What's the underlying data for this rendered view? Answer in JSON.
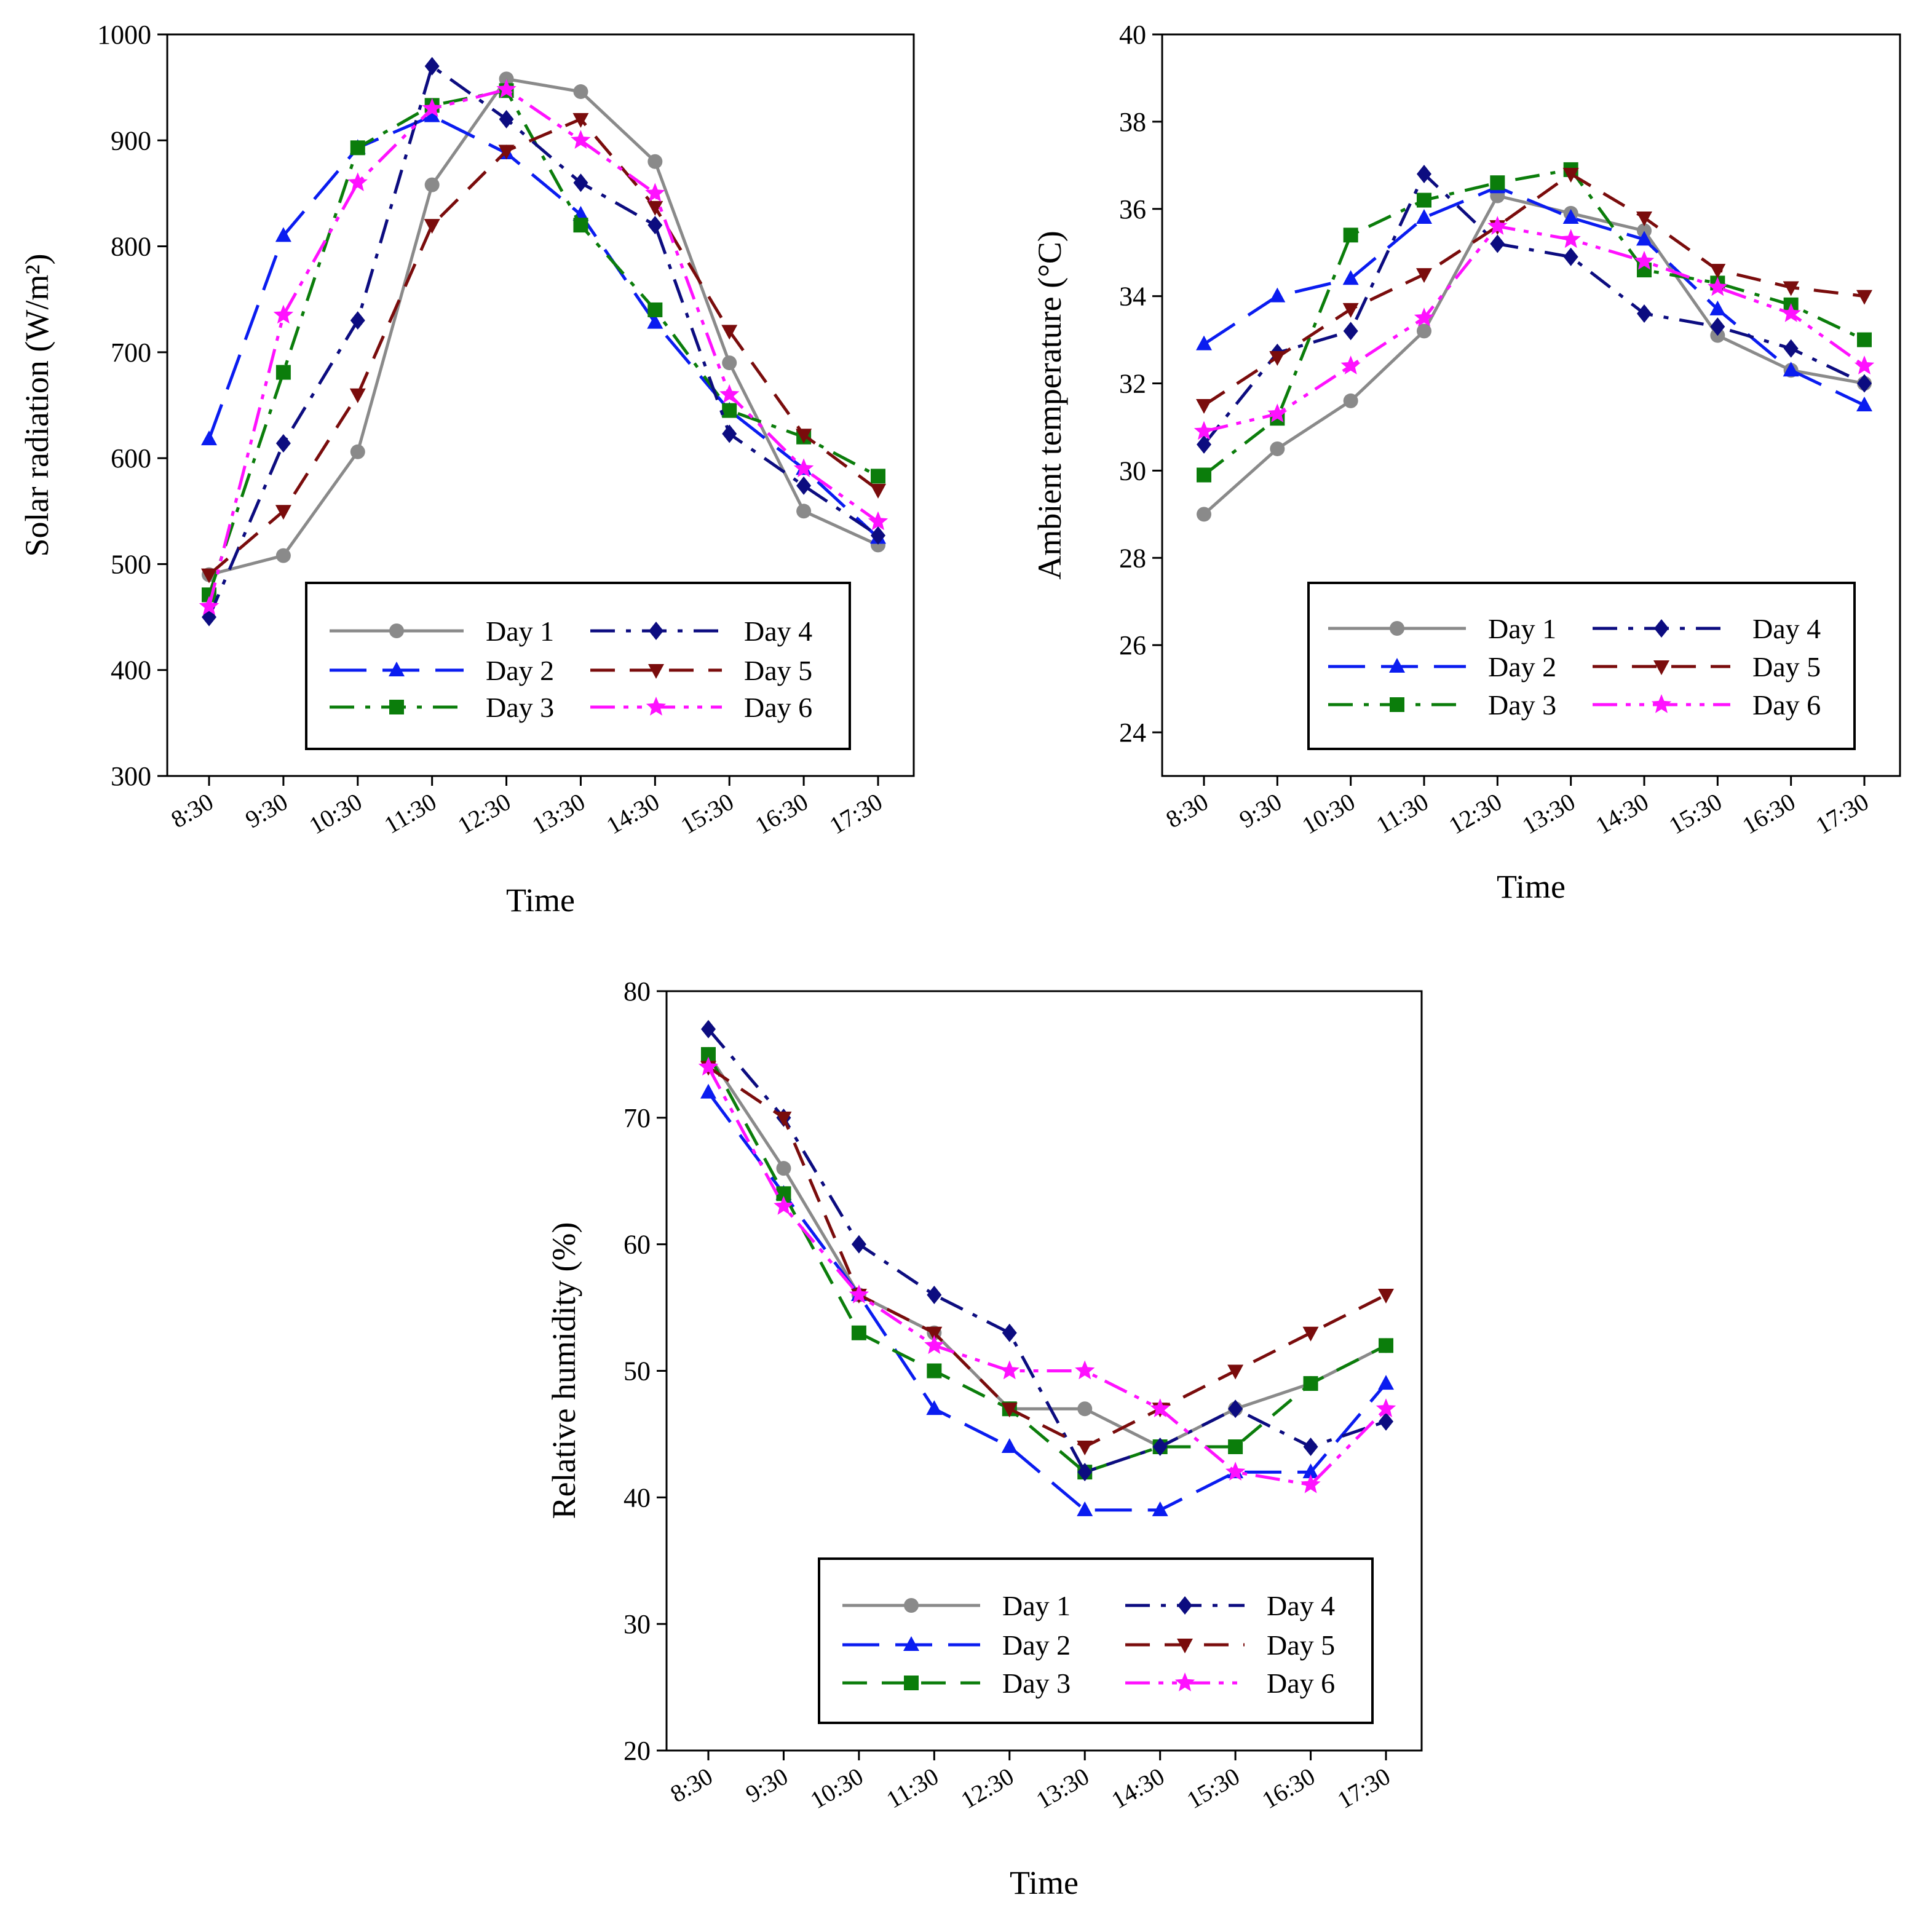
{
  "chart_data": [
    {
      "type": "line",
      "id": "solar",
      "title": "",
      "xlabel": "Time",
      "ylabel": "Solar radiation (W/m²)",
      "ylim": [
        300,
        1000
      ],
      "yticks": [
        300,
        400,
        500,
        600,
        700,
        800,
        900,
        1000
      ],
      "categories": [
        "8:30",
        "9:30",
        "10:30",
        "11:30",
        "12:30",
        "13:30",
        "14:30",
        "15:30",
        "16:30",
        "17:30"
      ],
      "legend_position": "bottom-right",
      "series": [
        {
          "name": "Day 1",
          "color": "#8a8a8a",
          "marker": "circle",
          "dash": "solid",
          "values": [
            490,
            508,
            606,
            858,
            958,
            946,
            880,
            690,
            550,
            518
          ]
        },
        {
          "name": "Day 2",
          "color": "#0a1cf0",
          "marker": "triangle-up",
          "dash": "long-dash",
          "values": [
            618,
            810,
            893,
            923,
            888,
            830,
            728,
            645,
            590,
            525
          ]
        },
        {
          "name": "Day 3",
          "color": "#0b7d0b",
          "marker": "square",
          "dash": "dash-dot",
          "values": [
            471,
            681,
            893,
            933,
            947,
            820,
            740,
            645,
            620,
            583
          ]
        },
        {
          "name": "Day 4",
          "color": "#0c0c80",
          "marker": "diamond",
          "dash": "dash-dot",
          "values": [
            450,
            614,
            730,
            970,
            920,
            860,
            820,
            623,
            574,
            527
          ]
        },
        {
          "name": "Day 5",
          "color": "#7a0c0c",
          "marker": "triangle-down",
          "dash": "dash",
          "values": [
            490,
            550,
            660,
            820,
            890,
            920,
            837,
            720,
            622,
            570
          ]
        },
        {
          "name": "Day 6",
          "color": "#ff11ff",
          "marker": "star",
          "dash": "dash-dot-dot",
          "values": [
            460,
            735,
            860,
            930,
            948,
            900,
            850,
            660,
            590,
            540
          ]
        }
      ]
    },
    {
      "type": "line",
      "id": "ambient",
      "title": "",
      "xlabel": "Time",
      "ylabel": "Ambient temperature (°C)",
      "ylim": [
        23,
        40
      ],
      "yticks": [
        24,
        26,
        28,
        30,
        32,
        34,
        36,
        38,
        40
      ],
      "categories": [
        "8:30",
        "9:30",
        "10:30",
        "11:30",
        "12:30",
        "13:30",
        "14:30",
        "15:30",
        "16:30",
        "17:30"
      ],
      "legend_position": "bottom-right",
      "series": [
        {
          "name": "Day 1",
          "color": "#8a8a8a",
          "marker": "circle",
          "dash": "solid",
          "values": [
            29.0,
            30.5,
            31.6,
            33.2,
            36.3,
            35.9,
            35.5,
            33.1,
            32.3,
            32.0
          ]
        },
        {
          "name": "Day 2",
          "color": "#0a1cf0",
          "marker": "triangle-up",
          "dash": "long-dash",
          "values": [
            32.9,
            34.0,
            34.4,
            35.8,
            36.5,
            35.8,
            35.3,
            33.7,
            32.3,
            31.5
          ]
        },
        {
          "name": "Day 3",
          "color": "#0b7d0b",
          "marker": "square",
          "dash": "dash-dot",
          "values": [
            29.9,
            31.2,
            35.4,
            36.2,
            36.6,
            36.9,
            34.6,
            34.3,
            33.8,
            33.0
          ]
        },
        {
          "name": "Day 4",
          "color": "#0c0c80",
          "marker": "diamond",
          "dash": "dash-dot",
          "values": [
            30.6,
            32.7,
            33.2,
            36.8,
            35.2,
            34.9,
            33.6,
            33.3,
            32.8,
            32.0
          ]
        },
        {
          "name": "Day 5",
          "color": "#7a0c0c",
          "marker": "triangle-down",
          "dash": "dash",
          "values": [
            31.5,
            32.6,
            33.7,
            34.5,
            35.6,
            36.8,
            35.8,
            34.6,
            34.2,
            34.0
          ]
        },
        {
          "name": "Day 6",
          "color": "#ff11ff",
          "marker": "star",
          "dash": "dash-dot-dot",
          "values": [
            30.9,
            31.3,
            32.4,
            33.5,
            35.6,
            35.3,
            34.8,
            34.2,
            33.6,
            32.4
          ]
        }
      ]
    },
    {
      "type": "line",
      "id": "humidity",
      "title": "",
      "xlabel": "Time",
      "ylabel": "Relative humidity (%)",
      "ylim": [
        20,
        80
      ],
      "yticks": [
        20,
        30,
        40,
        50,
        60,
        70,
        80
      ],
      "categories": [
        "8:30",
        "9:30",
        "10:30",
        "11:30",
        "12:30",
        "13:30",
        "14:30",
        "15:30",
        "16:30",
        "17:30"
      ],
      "legend_position": "bottom",
      "series": [
        {
          "name": "Day 1",
          "color": "#8a8a8a",
          "marker": "circle",
          "dash": "solid",
          "values": [
            75,
            66,
            56,
            53,
            47,
            47,
            44,
            47,
            49,
            52
          ]
        },
        {
          "name": "Day 2",
          "color": "#0a1cf0",
          "marker": "triangle-up",
          "dash": "long-dash",
          "values": [
            72,
            64,
            56,
            47,
            44,
            39,
            39,
            42,
            42,
            49
          ]
        },
        {
          "name": "Day 3",
          "color": "#0b7d0b",
          "marker": "square",
          "dash": "dash",
          "values": [
            75,
            64,
            53,
            50,
            47,
            42,
            44,
            44,
            49,
            52
          ]
        },
        {
          "name": "Day 4",
          "color": "#0c0c80",
          "marker": "diamond",
          "dash": "dash-dot",
          "values": [
            77,
            70,
            60,
            56,
            53,
            42,
            44,
            47,
            44,
            46
          ]
        },
        {
          "name": "Day 5",
          "color": "#7a0c0c",
          "marker": "triangle-down",
          "dash": "dash",
          "values": [
            74,
            70,
            56,
            53,
            47,
            44,
            47,
            50,
            53,
            56
          ]
        },
        {
          "name": "Day 6",
          "color": "#ff11ff",
          "marker": "star",
          "dash": "dash-dot-dot",
          "values": [
            74,
            63,
            56,
            52,
            50,
            50,
            47,
            42,
            41,
            47
          ]
        }
      ]
    }
  ]
}
